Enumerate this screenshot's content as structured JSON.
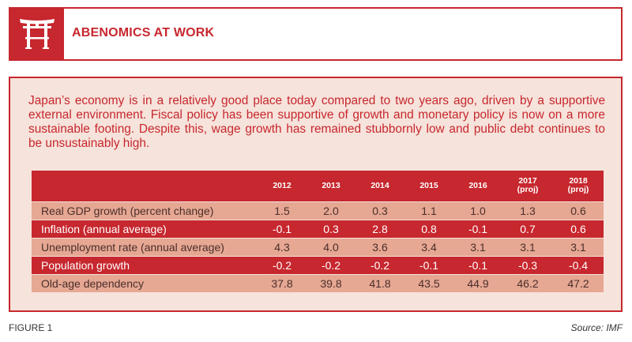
{
  "header": {
    "logo_icon": "torii-gate-icon",
    "title": "ABENOMICS AT WORK"
  },
  "intro": "Japan’s economy is in a relatively good place today compared to two years ago, driven by a supportive external environment. Fiscal policy has been supportive of growth and monetary policy is now on a more sustainable footing. Despite this, wage growth has remained stubbornly low and public debt continues to be unsustainably high.",
  "table": {
    "columns": [
      {
        "year": "2012",
        "note": ""
      },
      {
        "year": "2013",
        "note": ""
      },
      {
        "year": "2014",
        "note": ""
      },
      {
        "year": "2015",
        "note": ""
      },
      {
        "year": "2016",
        "note": ""
      },
      {
        "year": "2017",
        "note": "(proj)"
      },
      {
        "year": "2018",
        "note": "(proj)"
      }
    ],
    "rows": [
      {
        "label": "Real GDP growth (percent change)",
        "values": [
          "1.5",
          "2.0",
          "0.3",
          "1.1",
          "1.0",
          "1.3",
          "0.6"
        ]
      },
      {
        "label": "Inflation (annual average)",
        "values": [
          "-0.1",
          "0.3",
          "2.8",
          "0.8",
          "-0.1",
          "0.7",
          "0.6"
        ]
      },
      {
        "label": "Unemployment rate (annual average)",
        "values": [
          "4.3",
          "4.0",
          "3.6",
          "3.4",
          "3.1",
          "3.1",
          "3.1"
        ]
      },
      {
        "label": "Population growth",
        "values": [
          "-0.2",
          "-0.2",
          "-0.2",
          "-0.1",
          "-0.1",
          "-0.3",
          "-0.4"
        ]
      },
      {
        "label": "Old-age dependency",
        "values": [
          "37.8",
          "39.8",
          "41.8",
          "43.5",
          "44.9",
          "46.2",
          "47.2"
        ]
      }
    ]
  },
  "footer": {
    "figure_label": "FIGURE 1",
    "source": "Source: IMF"
  },
  "colors": {
    "accent_red": "#c7272e",
    "panel_bg": "#f6e3db",
    "row_light": "#e6a793"
  }
}
